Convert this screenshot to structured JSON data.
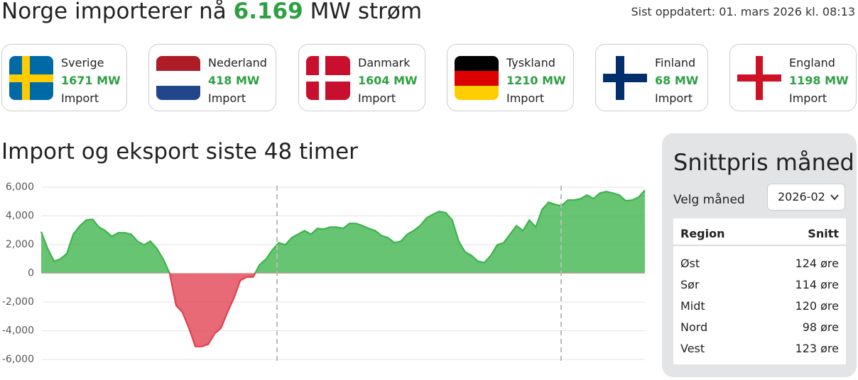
{
  "header": {
    "title_prefix": "Norge importerer nå",
    "title_value": "6.169",
    "title_suffix": "MW strøm",
    "updated": "Sist oppdatert: 01. mars 2026 kl. 08:13"
  },
  "countries": [
    {
      "name": "Sverige",
      "amount": "1671 MW",
      "direction": "Import"
    },
    {
      "name": "Nederland",
      "amount": "418 MW",
      "direction": "Import"
    },
    {
      "name": "Danmark",
      "amount": "1604 MW",
      "direction": "Import"
    },
    {
      "name": "Tyskland",
      "amount": "1210 MW",
      "direction": "Import"
    },
    {
      "name": "Finland",
      "amount": "68 MW",
      "direction": "Import"
    },
    {
      "name": "England",
      "amount": "1198 MW",
      "direction": "Import"
    }
  ],
  "chart_data": {
    "type": "area",
    "title": "Import og eksport siste 48 timer",
    "positive_color": "#3cb44b",
    "negative_color": "#e0404f",
    "values": [
      2900,
      1730,
      840,
      1000,
      1390,
      2720,
      3300,
      3710,
      3760,
      3220,
      2970,
      2570,
      2820,
      2820,
      2720,
      2230,
      1980,
      2230,
      1730,
      990,
      0,
      -2230,
      -2720,
      -3810,
      -5100,
      -5100,
      -4950,
      -4210,
      -3810,
      -2720,
      -1730,
      -500,
      -250,
      -250,
      590,
      990,
      1630,
      2130,
      1980,
      2480,
      2720,
      2970,
      2720,
      3120,
      3070,
      3220,
      3220,
      3120,
      3470,
      3470,
      3320,
      3120,
      2970,
      2620,
      2480,
      2130,
      2230,
      2720,
      2970,
      3320,
      3860,
      4110,
      4310,
      4210,
      3710,
      2230,
      1490,
      1240,
      840,
      740,
      1240,
      1980,
      2130,
      2720,
      3320,
      2970,
      3710,
      3220,
      4460,
      4950,
      4800,
      4700,
      5100,
      5100,
      5200,
      5450,
      5200,
      5590,
      5690,
      5590,
      5450,
      5050,
      5100,
      5300,
      5790
    ],
    "ylim": [
      -6000,
      6000
    ],
    "yticks": [
      {
        "value": 6000,
        "label": "6,000"
      },
      {
        "value": 4000,
        "label": "4,000"
      },
      {
        "value": 2000,
        "label": "2,000"
      },
      0,
      {
        "value": -2000,
        "label": "-2,000"
      },
      {
        "value": -4000,
        "label": "-4,000"
      },
      {
        "value": -6000,
        "label": "-6,000"
      }
    ],
    "grid": true
  },
  "sidebar": {
    "title": "Snittpris måned",
    "select_label": "Velg måned",
    "selected_month": "2026-02",
    "table": {
      "header": [
        "Region",
        "Snitt"
      ],
      "rows": [
        [
          "Øst",
          "124 øre"
        ],
        [
          "Sør",
          "114 øre"
        ],
        [
          "Midt",
          "120 øre"
        ],
        [
          "Nord",
          "98 øre"
        ],
        [
          "Vest",
          "123 øre"
        ]
      ]
    }
  }
}
